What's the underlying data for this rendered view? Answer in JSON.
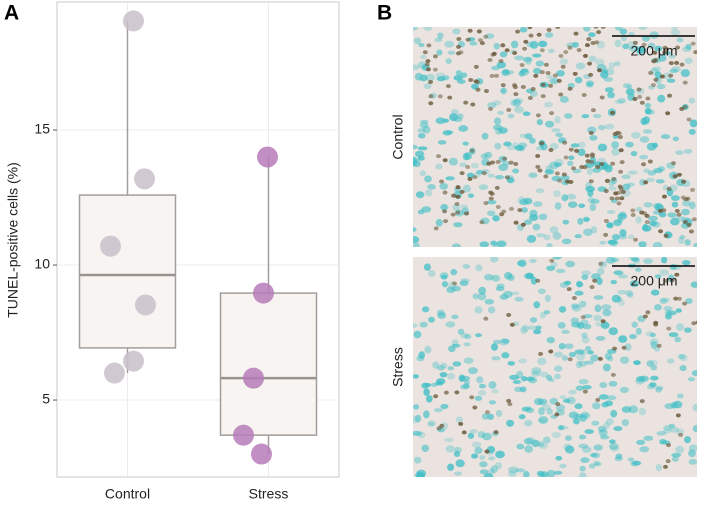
{
  "chart_data": {
    "type": "box",
    "panel_label": "A",
    "y_label": "TUNEL-positive cells (%)",
    "categories": [
      "Control",
      "Stress"
    ],
    "series": [
      {
        "color": "#c9bfca",
        "box": {
          "min": 6.0,
          "q1": 6.93,
          "median": 9.63,
          "q3": 12.59,
          "max": 19.04
        },
        "points": [
          19.04,
          13.19,
          10.7,
          8.52,
          6.44,
          6.0
        ]
      },
      {
        "color": "#b67bb8",
        "box": {
          "min": 3.0,
          "q1": 3.7,
          "median": 5.81,
          "q3": 8.96,
          "max": 14.0
        },
        "points": [
          14.0,
          8.96,
          5.81,
          3.7,
          3.0
        ]
      }
    ],
    "box_fill": "#f8f4f2",
    "box_stroke": "#a39d9b",
    "ylim": [
      2.15,
      19.74
    ],
    "yticks": [
      5,
      10,
      15
    ],
    "grid": true
  },
  "images": {
    "panel_label": "B",
    "panels": [
      {
        "label": "Control",
        "scale_bar": "200 μm"
      },
      {
        "label": "Stress",
        "scale_bar": "200 μm"
      }
    ]
  }
}
